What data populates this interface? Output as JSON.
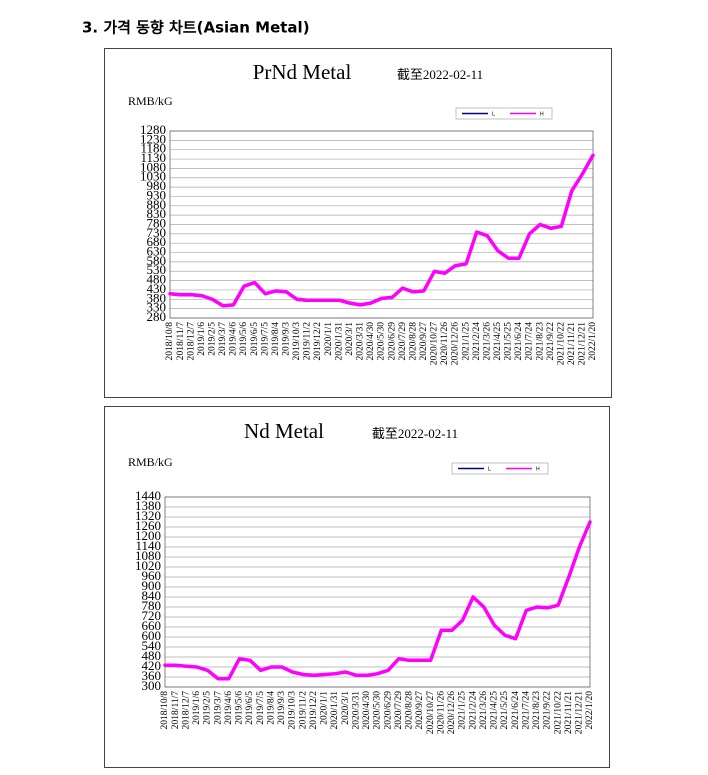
{
  "heading": "3. 가격 동향 차트(Asian Metal)",
  "chart_data": [
    {
      "type": "line",
      "title": "PrNd Metal",
      "subtitle": "截至2022-02-11",
      "y_label": "RMB/kG",
      "categories": [
        "2018/10/8",
        "2018/11/7",
        "2018/12/7",
        "2019/1/6",
        "2019/2/5",
        "2019/3/7",
        "2019/4/6",
        "2019/5/6",
        "2019/6/5",
        "2019/7/5",
        "2019/8/4",
        "2019/9/3",
        "2019/10/3",
        "2019/11/2",
        "2019/12/2",
        "2020/1/1",
        "2020/1/31",
        "2020/3/1",
        "2020/3/31",
        "2020/4/30",
        "2020/5/30",
        "2020/6/29",
        "2020/7/29",
        "2020/8/28",
        "2020/9/27",
        "2020/10/27",
        "2020/11/26",
        "2020/12/26",
        "2021/1/25",
        "2021/2/24",
        "2021/3/26",
        "2021/4/25",
        "2021/5/25",
        "2021/6/24",
        "2021/7/24",
        "2021/8/23",
        "2021/9/22",
        "2021/10/22",
        "2021/11/21",
        "2021/12/21",
        "2022/1/20"
      ],
      "series": [
        {
          "name": "L",
          "color": "#000080",
          "values": [
            405,
            400,
            400,
            395,
            375,
            340,
            345,
            445,
            465,
            405,
            420,
            415,
            375,
            370,
            370,
            370,
            370,
            355,
            345,
            355,
            380,
            385,
            435,
            415,
            420,
            525,
            515,
            555,
            565,
            735,
            715,
            635,
            595,
            595,
            725,
            775,
            755,
            765,
            955,
            1045,
            1145
          ]
        },
        {
          "name": "H",
          "color": "#ff00ff",
          "values": [
            410,
            405,
            405,
            400,
            380,
            345,
            350,
            450,
            470,
            410,
            425,
            420,
            380,
            375,
            375,
            375,
            375,
            360,
            350,
            360,
            385,
            390,
            440,
            420,
            425,
            530,
            520,
            560,
            570,
            740,
            720,
            640,
            600,
            600,
            730,
            780,
            760,
            770,
            960,
            1050,
            1150
          ]
        }
      ],
      "ylim": [
        280,
        1280
      ],
      "yticks": [
        280,
        330,
        380,
        430,
        480,
        530,
        580,
        630,
        680,
        730,
        780,
        830,
        880,
        930,
        980,
        1030,
        1080,
        1130,
        1180,
        1230,
        1280
      ],
      "grid": true
    },
    {
      "type": "line",
      "title": "Nd Metal",
      "subtitle": "截至2022-02-11",
      "y_label": "RMB/kG",
      "categories": [
        "2018/10/8",
        "2018/11/7",
        "2018/12/7",
        "2019/1/6",
        "2019/2/5",
        "2019/3/7",
        "2019/4/6",
        "2019/5/6",
        "2019/6/5",
        "2019/7/5",
        "2019/8/4",
        "2019/9/3",
        "2019/10/3",
        "2019/11/2",
        "2019/12/2",
        "2020/1/1",
        "2020/1/31",
        "2020/3/1",
        "2020/3/31",
        "2020/4/30",
        "2020/5/30",
        "2020/6/29",
        "2020/7/29",
        "2020/8/28",
        "2020/9/27",
        "2020/10/27",
        "2020/11/26",
        "2020/12/26",
        "2021/1/25",
        "2021/2/24",
        "2021/3/26",
        "2021/4/25",
        "2021/5/25",
        "2021/6/24",
        "2021/7/24",
        "2021/8/23",
        "2021/9/22",
        "2021/10/22",
        "2021/11/21",
        "2021/12/21",
        "2022/1/20"
      ],
      "series": [
        {
          "name": "L",
          "color": "#000080",
          "values": [
            425,
            425,
            420,
            415,
            395,
            345,
            345,
            465,
            455,
            395,
            415,
            415,
            385,
            370,
            365,
            370,
            375,
            385,
            365,
            365,
            375,
            395,
            465,
            455,
            455,
            455,
            635,
            635,
            695,
            835,
            775,
            665,
            605,
            585,
            755,
            775,
            770,
            785,
            955,
            1135,
            1285
          ]
        },
        {
          "name": "H",
          "color": "#ff00ff",
          "values": [
            430,
            430,
            425,
            420,
            400,
            350,
            350,
            470,
            460,
            400,
            420,
            420,
            390,
            375,
            370,
            375,
            380,
            390,
            370,
            370,
            380,
            400,
            470,
            460,
            460,
            460,
            640,
            640,
            700,
            840,
            780,
            670,
            610,
            590,
            760,
            780,
            775,
            790,
            960,
            1140,
            1290
          ]
        }
      ],
      "ylim": [
        300,
        1440
      ],
      "yticks": [
        300,
        360,
        420,
        480,
        540,
        600,
        660,
        720,
        780,
        840,
        900,
        960,
        1020,
        1080,
        1140,
        1200,
        1260,
        1320,
        1380,
        1440
      ],
      "grid": true
    }
  ]
}
